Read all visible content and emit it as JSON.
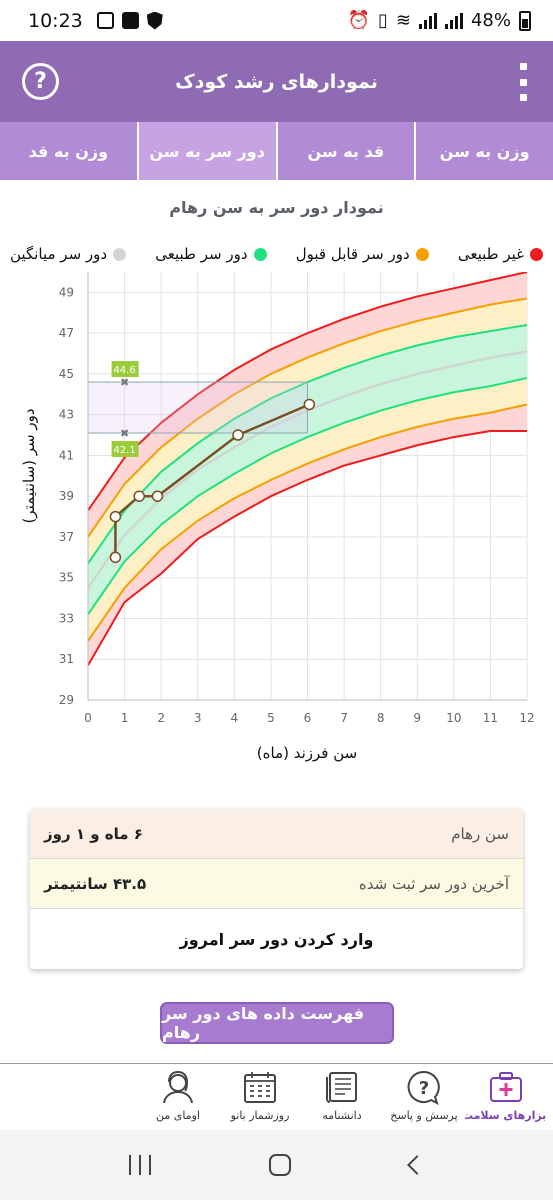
{
  "status_bar": {
    "time": "10:23",
    "battery": "48%"
  },
  "header": {
    "title": "نمودارهای رشد کودک",
    "help_icon": "?"
  },
  "tabs": [
    {
      "label": "وزن به سن",
      "active": false
    },
    {
      "label": "قد به سن",
      "active": false
    },
    {
      "label": "دور سر به سن",
      "active": true
    },
    {
      "label": "وزن به قد",
      "active": false
    }
  ],
  "chart": {
    "title": "نمودار دور سر به سن رهام",
    "legend": [
      {
        "label": "غیر طبیعی",
        "color": "#ee1c1c"
      },
      {
        "label": "دور سر قابل قبول",
        "color": "#f5a000"
      },
      {
        "label": "دور سر طبیعی",
        "color": "#21e07f"
      },
      {
        "label": "دور سر میانگین",
        "color": "#d4d4d4"
      }
    ]
  },
  "chart_data": {
    "type": "line",
    "xlabel": "سن فرزند (ماه)",
    "ylabel": "دور سر (سانتیمتر)",
    "xlim": [
      0,
      12
    ],
    "ylim": [
      29,
      50
    ],
    "x_ticks": [
      0,
      1,
      2,
      3,
      4,
      5,
      6,
      7,
      8,
      9,
      10,
      11,
      12
    ],
    "y_ticks": [
      29,
      31,
      33,
      35,
      37,
      39,
      41,
      43,
      45,
      47,
      49
    ],
    "curve_months": [
      0,
      1,
      2,
      3,
      4,
      5,
      6,
      7,
      8,
      9,
      10,
      11,
      12
    ],
    "reference_curves": {
      "upper_abnormal": [
        38.3,
        40.9,
        42.6,
        44.0,
        45.2,
        46.2,
        47.0,
        47.7,
        48.3,
        48.8,
        49.2,
        49.6,
        50.0
      ],
      "upper_acceptable": [
        37.0,
        39.6,
        41.4,
        42.8,
        44.0,
        45.0,
        45.8,
        46.5,
        47.1,
        47.6,
        48.0,
        48.4,
        48.7
      ],
      "upper_normal": [
        35.7,
        38.3,
        40.2,
        41.6,
        42.8,
        43.8,
        44.6,
        45.3,
        45.9,
        46.4,
        46.8,
        47.1,
        47.4
      ],
      "median": [
        34.5,
        37.1,
        38.9,
        40.3,
        41.4,
        42.4,
        43.2,
        43.9,
        44.5,
        45.0,
        45.4,
        45.8,
        46.1
      ],
      "lower_normal": [
        33.2,
        35.8,
        37.6,
        39.0,
        40.1,
        41.1,
        41.9,
        42.6,
        43.2,
        43.7,
        44.1,
        44.4,
        44.8
      ],
      "lower_acceptable": [
        31.9,
        34.5,
        36.4,
        37.8,
        38.9,
        39.8,
        40.6,
        41.3,
        41.9,
        42.4,
        42.8,
        43.1,
        43.5
      ],
      "lower_abnormal": [
        30.7,
        33.8,
        35.2,
        36.9,
        38.0,
        39.0,
        39.8,
        40.5,
        41.0,
        41.5,
        41.9,
        42.2,
        42.2
      ]
    },
    "series": [
      {
        "x": [
          0.75,
          0.75,
          1.4,
          1.9,
          4.1,
          6.05
        ],
        "y": [
          36.0,
          38.0,
          39.0,
          39.0,
          42.0,
          43.5
        ]
      }
    ],
    "highlight_range": {
      "x": [
        0,
        6
      ],
      "y": [
        42.1,
        44.6
      ]
    },
    "annotations": [
      {
        "x": 1,
        "y": 44.6,
        "label": "44.6"
      },
      {
        "x": 1,
        "y": 42.1,
        "label": "42.1"
      }
    ]
  },
  "info_card": {
    "age_label": "سن رهام",
    "age_value": "۶ ماه و ۱ روز",
    "last_label": "آخرین دور سر ثبت شده",
    "last_value": "۴۳.۵ سانتیمتر",
    "action_label": "وارد کردن دور سر امروز"
  },
  "list_button": {
    "label": "فهرست داده های دور سر رهام"
  },
  "bottom_nav": [
    {
      "label": "ابزارهای سلامت",
      "icon": "medical-kit-icon",
      "active": true
    },
    {
      "label": "پرسش و پاسخ",
      "icon": "question-bubble-icon",
      "active": false
    },
    {
      "label": "دانشنامه",
      "icon": "encyclopedia-icon",
      "active": false
    },
    {
      "label": "روزشمار بانو",
      "icon": "calendar-icon",
      "active": false
    },
    {
      "label": "اومای من",
      "icon": "profile-icon",
      "active": false
    }
  ],
  "colors": {
    "header": "#8e6bb3",
    "tab_bar": "#b18bd6",
    "tab_active": "#c6a3e2",
    "series_line": "#7a4e24"
  }
}
